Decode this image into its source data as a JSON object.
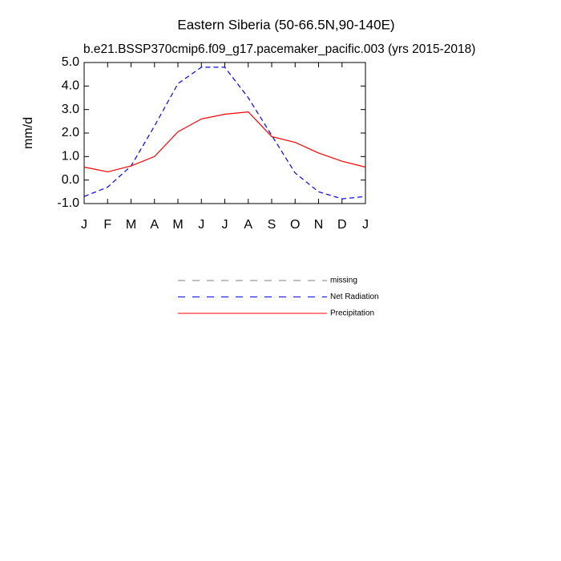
{
  "chart_data": {
    "type": "line",
    "title": "Eastern Siberia (50-66.5N,90-140E)",
    "subtitle": "b.e21.BSSP370cmip6.f09_g17.pacemaker_pacific.003 (yrs 2015-2018)",
    "y_label": "mm/d",
    "categories": [
      "J",
      "F",
      "M",
      "A",
      "M",
      "J",
      "J",
      "A",
      "S",
      "O",
      "N",
      "D",
      "J"
    ],
    "series": [
      {
        "name": "missing",
        "color": "#808080",
        "dash": true,
        "values": [
          null,
          null,
          null,
          null,
          null,
          null,
          null,
          null,
          null,
          null,
          null,
          null,
          null
        ]
      },
      {
        "name": "Net Radiation",
        "color": "#0000ff",
        "dash": true,
        "values": [
          -0.7,
          -0.3,
          0.6,
          2.3,
          4.1,
          4.8,
          4.8,
          3.5,
          1.9,
          0.3,
          -0.5,
          -0.8,
          -0.7
        ]
      },
      {
        "name": "Precipitation",
        "color": "#ff0000",
        "dash": false,
        "values": [
          0.55,
          0.35,
          0.6,
          1.0,
          2.05,
          2.6,
          2.8,
          2.9,
          1.85,
          1.6,
          1.15,
          0.8,
          0.55
        ]
      }
    ],
    "ylim": [
      -1,
      5
    ],
    "yticks": [
      {
        "value": -1,
        "label": "-1.0"
      },
      {
        "value": 0,
        "label": "0.0"
      },
      {
        "value": 1,
        "label": "1.0"
      },
      {
        "value": 2,
        "label": "2.0"
      },
      {
        "value": 3,
        "label": "3.0"
      },
      {
        "value": 4,
        "label": "4.0"
      },
      {
        "value": 5,
        "label": "5.0"
      }
    ],
    "grid": false
  }
}
